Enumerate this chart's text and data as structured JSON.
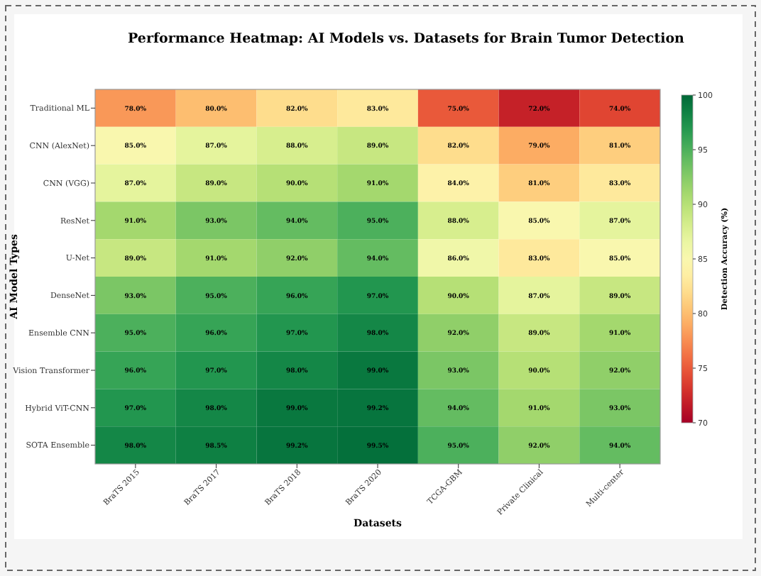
{
  "chart_data": {
    "type": "heatmap",
    "title": "Performance Heatmap: AI Models vs. Datasets for Brain Tumor Detection",
    "xlabel": "Datasets",
    "ylabel": "AI Model Types",
    "clabel": "Detection Accuracy (%)",
    "categories": [
      "BraTS 2015",
      "BraTS 2017",
      "BraTS 2018",
      "BraTS 2020",
      "TCGA-GBM",
      "Private Clinical",
      "Multi-center"
    ],
    "y_categories": [
      "Traditional ML",
      "CNN (AlexNet)",
      "CNN (VGG)",
      "ResNet",
      "U-Net",
      "DenseNet",
      "Ensemble CNN",
      "Vision Transformer",
      "Hybrid ViT-CNN",
      "SOTA Ensemble"
    ],
    "cells": [
      [
        78,
        80,
        82,
        83,
        75,
        72,
        74
      ],
      [
        85,
        87,
        88,
        89,
        82,
        79,
        81
      ],
      [
        87,
        89,
        90,
        91,
        84,
        81,
        83
      ],
      [
        91,
        93,
        94,
        95,
        88,
        85,
        87
      ],
      [
        89,
        91,
        92,
        94,
        86,
        83,
        85
      ],
      [
        93,
        95,
        96,
        97,
        90,
        87,
        89
      ],
      [
        95,
        96,
        97,
        98,
        92,
        89,
        91
      ],
      [
        96,
        97,
        98,
        99,
        93,
        90,
        92
      ],
      [
        97,
        98,
        99,
        99.2,
        94,
        91,
        93
      ],
      [
        98,
        98.5,
        99.2,
        99.5,
        95,
        92,
        94
      ]
    ],
    "cell_labels": [
      [
        "78.0%",
        "80.0%",
        "82.0%",
        "83.0%",
        "75.0%",
        "72.0%",
        "74.0%"
      ],
      [
        "85.0%",
        "87.0%",
        "88.0%",
        "89.0%",
        "82.0%",
        "79.0%",
        "81.0%"
      ],
      [
        "87.0%",
        "89.0%",
        "90.0%",
        "91.0%",
        "84.0%",
        "81.0%",
        "83.0%"
      ],
      [
        "91.0%",
        "93.0%",
        "94.0%",
        "95.0%",
        "88.0%",
        "85.0%",
        "87.0%"
      ],
      [
        "89.0%",
        "91.0%",
        "92.0%",
        "94.0%",
        "86.0%",
        "83.0%",
        "85.0%"
      ],
      [
        "93.0%",
        "95.0%",
        "96.0%",
        "97.0%",
        "90.0%",
        "87.0%",
        "89.0%"
      ],
      [
        "95.0%",
        "96.0%",
        "97.0%",
        "98.0%",
        "92.0%",
        "89.0%",
        "91.0%"
      ],
      [
        "96.0%",
        "97.0%",
        "98.0%",
        "99.0%",
        "93.0%",
        "90.0%",
        "92.0%"
      ],
      [
        "97.0%",
        "98.0%",
        "99.0%",
        "99.2%",
        "94.0%",
        "91.0%",
        "93.0%"
      ],
      [
        "98.0%",
        "98.5%",
        "99.2%",
        "99.5%",
        "95.0%",
        "92.0%",
        "94.0%"
      ]
    ],
    "clim": [
      70,
      100
    ],
    "cticks": [
      70,
      75,
      80,
      85,
      90,
      95,
      100
    ]
  }
}
